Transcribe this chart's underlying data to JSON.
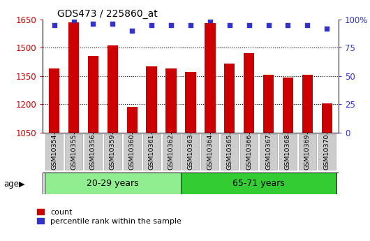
{
  "title": "GDS473 / 225860_at",
  "samples": [
    "GSM10354",
    "GSM10355",
    "GSM10356",
    "GSM10359",
    "GSM10360",
    "GSM10361",
    "GSM10362",
    "GSM10363",
    "GSM10364",
    "GSM10365",
    "GSM10366",
    "GSM10367",
    "GSM10368",
    "GSM10369",
    "GSM10370"
  ],
  "counts": [
    1390,
    1635,
    1455,
    1510,
    1185,
    1400,
    1390,
    1370,
    1630,
    1415,
    1470,
    1355,
    1340,
    1355,
    1205
  ],
  "percentile_ranks": [
    95,
    99,
    96,
    96,
    90,
    95,
    95,
    95,
    99,
    95,
    95,
    95,
    95,
    95,
    92
  ],
  "groups": [
    {
      "label": "20-29 years",
      "start": 0,
      "end": 7,
      "color": "#90EE90"
    },
    {
      "label": "65-71 years",
      "start": 7,
      "end": 15,
      "color": "#33CC33"
    }
  ],
  "ylim_left": [
    1050,
    1650
  ],
  "ylim_right": [
    0,
    100
  ],
  "yticks_left": [
    1050,
    1200,
    1350,
    1500,
    1650
  ],
  "yticks_right": [
    0,
    25,
    50,
    75,
    100
  ],
  "ytick_labels_right": [
    "0",
    "25",
    "50",
    "75",
    "100%"
  ],
  "bar_color": "#CC0000",
  "dot_color": "#3333CC",
  "bar_width": 0.55,
  "background_color": "#ffffff",
  "plot_bg_color": "#ffffff",
  "age_label": "age",
  "legend_count": "count",
  "legend_percentile": "percentile rank within the sample",
  "tick_label_color_left": "#CC0000",
  "tick_label_color_right": "#3333CC",
  "xticklabel_bg": "#cccccc",
  "group_divider": 7
}
